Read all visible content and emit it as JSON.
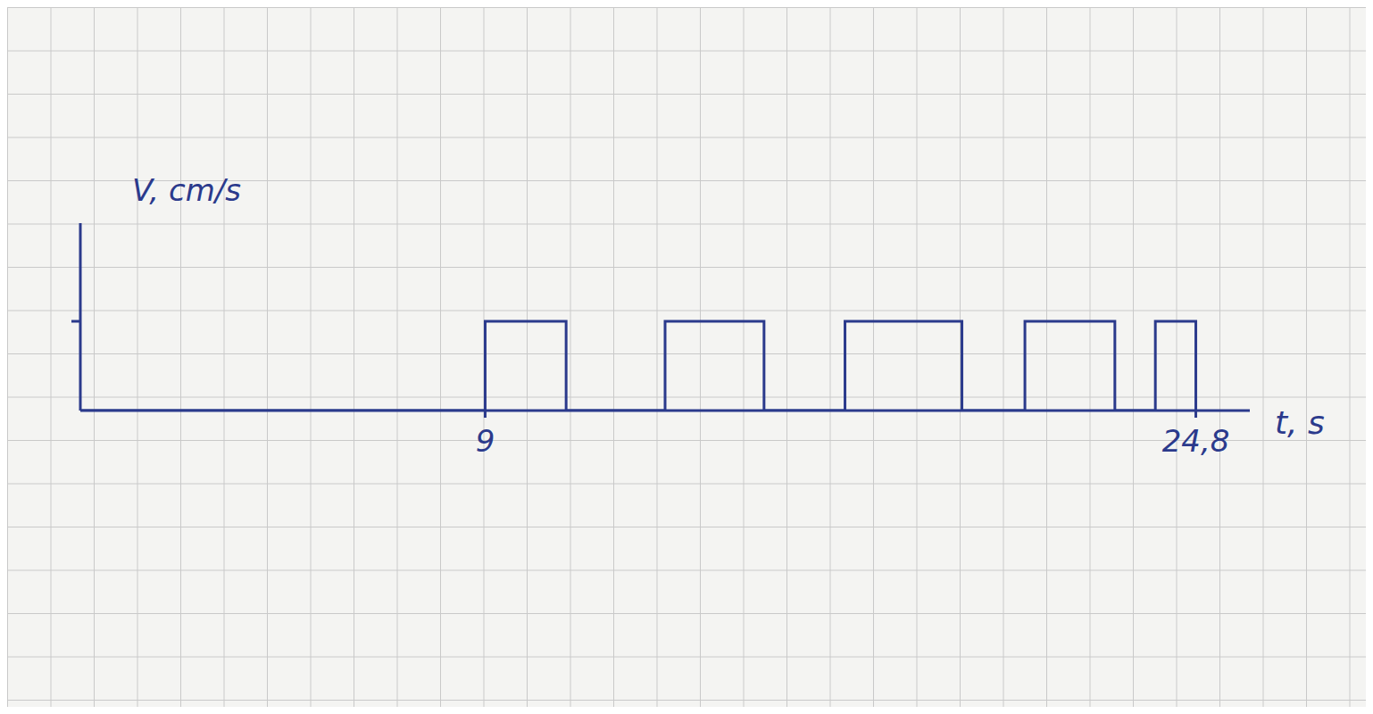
{
  "chart_data": {
    "type": "line",
    "x_label": "t, s",
    "y_label": "V, cm/s",
    "x": [
      0,
      9,
      10.8,
      13,
      15.2,
      17,
      19.6,
      21,
      23,
      23.9,
      24.8
    ],
    "values": [
      0,
      1,
      0,
      1,
      0,
      1,
      0,
      1,
      0,
      1,
      0
    ],
    "color": "#2b3a8c",
    "line_style": "step",
    "xlim": [
      0,
      26
    ],
    "xticks": [
      9,
      {
        "value": 24.8,
        "label": "24,8"
      }
    ],
    "ylim": [
      0,
      2.1
    ],
    "yticks": [
      1
    ],
    "tick_labels": "x"
  }
}
